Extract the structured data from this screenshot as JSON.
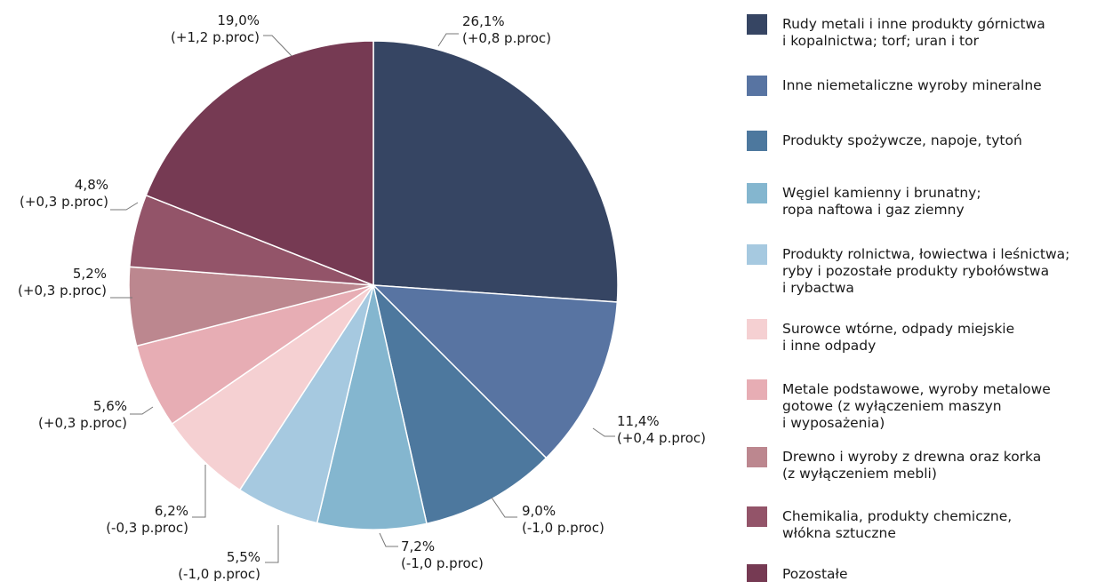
{
  "chart_data": {
    "type": "pie",
    "title": "",
    "values": [
      26.1,
      11.4,
      9.0,
      7.2,
      5.5,
      6.2,
      5.6,
      5.2,
      4.8,
      19.0
    ],
    "labels": [
      "26,1%",
      "11,4%",
      "9,0%",
      "7,2%",
      "5,5%",
      "6,2%",
      "5,6%",
      "5,2%",
      "4,8%",
      "19,0%"
    ],
    "changes": [
      "(+0,8 p.proc)",
      "(+0,4 p.proc)",
      "(-1,0 p.proc)",
      "(-1,0 p.proc)",
      "(-1,0 p.proc)",
      "(-0,3 p.proc)",
      "(+0,3 p.proc)",
      "(+0,3 p.proc)",
      "(+0,3 p.proc)",
      "(+1,2 p.proc)"
    ],
    "colors": [
      "#364563",
      "#5874a2",
      "#4d789e",
      "#84b6cf",
      "#a6c9e0",
      "#f5d0d2",
      "#e7adb4",
      "#bc878f",
      "#935469",
      "#763a53"
    ],
    "legend": [
      [
        "Rudy metali i inne produkty górnictwa",
        "i kopalnictwa; torf; uran i tor"
      ],
      [
        "Inne niemetaliczne wyroby mineralne"
      ],
      [
        "Produkty spożywcze, napoje, tytoń"
      ],
      [
        "Węgiel kamienny i brunatny;",
        "ropa naftowa i gaz ziemny"
      ],
      [
        "Produkty rolnictwa, łowiectwa i leśnictwa;",
        "ryby i pozostałe produkty rybołówstwa",
        "i rybactwa"
      ],
      [
        "Surowce wtórne, odpady miejskie",
        "i inne odpady"
      ],
      [
        "Metale podstawowe, wyroby metalowe",
        "gotowe (z wyłączeniem maszyn",
        "i wyposażenia)"
      ],
      [
        "Drewno i wyroby z drewna oraz korka",
        "(z wyłączeniem mebli)"
      ],
      [
        "Chemikalia, produkty chemiczne,",
        "włókna sztuczne"
      ],
      [
        "Pozostałe"
      ]
    ],
    "legend_placement": "right"
  }
}
